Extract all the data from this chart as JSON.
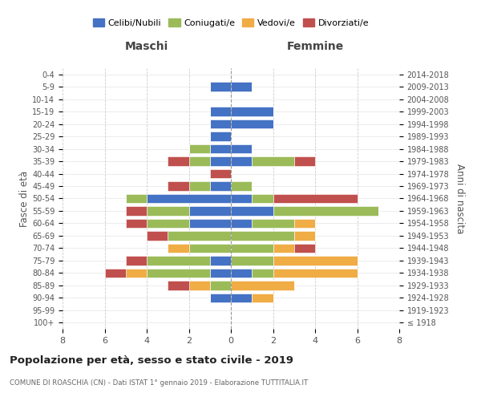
{
  "age_groups": [
    "100+",
    "95-99",
    "90-94",
    "85-89",
    "80-84",
    "75-79",
    "70-74",
    "65-69",
    "60-64",
    "55-59",
    "50-54",
    "45-49",
    "40-44",
    "35-39",
    "30-34",
    "25-29",
    "20-24",
    "15-19",
    "10-14",
    "5-9",
    "0-4"
  ],
  "birth_years": [
    "≤ 1918",
    "1919-1923",
    "1924-1928",
    "1929-1933",
    "1934-1938",
    "1939-1943",
    "1944-1948",
    "1949-1953",
    "1954-1958",
    "1959-1963",
    "1964-1968",
    "1969-1973",
    "1974-1978",
    "1979-1983",
    "1984-1988",
    "1989-1993",
    "1994-1998",
    "1999-2003",
    "2004-2008",
    "2009-2013",
    "2014-2018"
  ],
  "colors": {
    "celibi": "#4472C4",
    "coniugati": "#9BBB59",
    "vedovi": "#F0AC45",
    "divorziati": "#C0504D"
  },
  "maschi": {
    "celibi": [
      0,
      0,
      1,
      0,
      1,
      1,
      0,
      0,
      2,
      2,
      4,
      1,
      0,
      1,
      1,
      1,
      1,
      1,
      0,
      1,
      0
    ],
    "coniugati": [
      0,
      0,
      0,
      1,
      3,
      3,
      2,
      3,
      2,
      2,
      1,
      1,
      0,
      1,
      1,
      0,
      0,
      0,
      0,
      0,
      0
    ],
    "vedovi": [
      0,
      0,
      0,
      1,
      1,
      0,
      1,
      0,
      0,
      0,
      0,
      0,
      0,
      0,
      0,
      0,
      0,
      0,
      0,
      0,
      0
    ],
    "divorziati": [
      0,
      0,
      0,
      1,
      1,
      1,
      0,
      1,
      1,
      1,
      0,
      1,
      1,
      1,
      0,
      0,
      0,
      0,
      0,
      0,
      0
    ]
  },
  "femmine": {
    "celibi": [
      0,
      0,
      1,
      0,
      1,
      0,
      0,
      0,
      1,
      2,
      1,
      0,
      0,
      1,
      1,
      0,
      2,
      2,
      0,
      1,
      0
    ],
    "coniugati": [
      0,
      0,
      0,
      0,
      1,
      2,
      2,
      3,
      2,
      5,
      1,
      1,
      0,
      2,
      0,
      0,
      0,
      0,
      0,
      0,
      0
    ],
    "vedovi": [
      0,
      0,
      1,
      3,
      4,
      4,
      1,
      1,
      1,
      0,
      0,
      0,
      0,
      0,
      0,
      0,
      0,
      0,
      0,
      0,
      0
    ],
    "divorziati": [
      0,
      0,
      0,
      0,
      0,
      0,
      1,
      0,
      0,
      0,
      4,
      0,
      0,
      1,
      0,
      0,
      0,
      0,
      0,
      0,
      0
    ]
  },
  "xlim": 8,
  "title": "Popolazione per età, sesso e stato civile - 2019",
  "subtitle": "COMUNE DI ROASCHIA (CN) - Dati ISTAT 1° gennaio 2019 - Elaborazione TUTTITALIA.IT",
  "ylabel_left": "Fasce di età",
  "ylabel_right": "Anni di nascita",
  "xlabel_left": "Maschi",
  "xlabel_right": "Femmine"
}
